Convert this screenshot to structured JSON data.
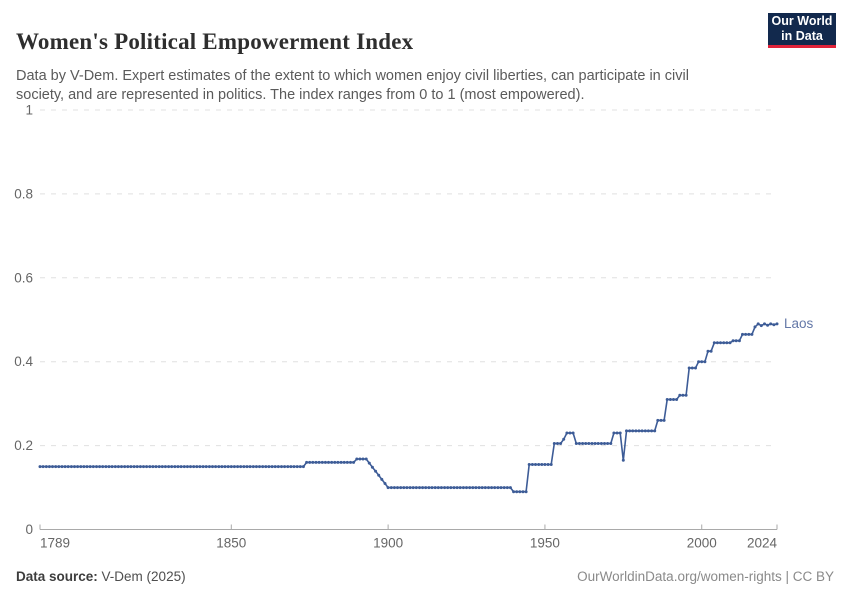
{
  "header": {
    "title": "Women's Political Empowerment Index",
    "subtitle": "Data by V-Dem. Expert estimates of the extent to which women enjoy civil liberties, can participate in civil society, and are represented in politics. The index ranges from 0 to 1 (most empowered).",
    "logo": {
      "line1": "Our World",
      "line2": "in Data",
      "bg_color": "#12294d",
      "accent_color": "#e0233a"
    }
  },
  "chart_data": {
    "type": "line",
    "title": "Women's Political Empowerment Index",
    "xlabel": "",
    "ylabel": "",
    "x_axis": {
      "range": [
        1789,
        2024
      ],
      "ticks": [
        1789,
        1850,
        1900,
        1950,
        2000,
        2024
      ]
    },
    "y_axis": {
      "range": [
        0,
        1
      ],
      "ticks": [
        0,
        0.2,
        0.4,
        0.6,
        0.8,
        1
      ],
      "gridlines": "dashed"
    },
    "legend_position": "end-of-line-label",
    "series": [
      {
        "name": "Laos",
        "interpolation": "linear between breakpoints, marker at every year",
        "breakpoints": [
          [
            1789,
            0.15
          ],
          [
            1873,
            0.15
          ],
          [
            1874,
            0.16
          ],
          [
            1889,
            0.16
          ],
          [
            1890,
            0.168
          ],
          [
            1893,
            0.168
          ],
          [
            1900,
            0.1
          ],
          [
            1939,
            0.1
          ],
          [
            1940,
            0.09
          ],
          [
            1944,
            0.09
          ],
          [
            1945,
            0.155
          ],
          [
            1952,
            0.155
          ],
          [
            1953,
            0.205
          ],
          [
            1955,
            0.205
          ],
          [
            1956,
            0.215
          ],
          [
            1957,
            0.23
          ],
          [
            1959,
            0.23
          ],
          [
            1960,
            0.205
          ],
          [
            1971,
            0.205
          ],
          [
            1972,
            0.23
          ],
          [
            1974,
            0.23
          ],
          [
            1975,
            0.165
          ],
          [
            1976,
            0.235
          ],
          [
            1985,
            0.235
          ],
          [
            1986,
            0.26
          ],
          [
            1988,
            0.26
          ],
          [
            1989,
            0.31
          ],
          [
            1992,
            0.31
          ],
          [
            1993,
            0.32
          ],
          [
            1995,
            0.32
          ],
          [
            1996,
            0.385
          ],
          [
            1998,
            0.385
          ],
          [
            1999,
            0.4
          ],
          [
            2001,
            0.4
          ],
          [
            2002,
            0.425
          ],
          [
            2003,
            0.425
          ],
          [
            2004,
            0.445
          ],
          [
            2009,
            0.445
          ],
          [
            2010,
            0.45
          ],
          [
            2012,
            0.45
          ],
          [
            2013,
            0.465
          ],
          [
            2016,
            0.465
          ],
          [
            2017,
            0.483
          ],
          [
            2018,
            0.49
          ],
          [
            2019,
            0.486
          ],
          [
            2020,
            0.49
          ],
          [
            2021,
            0.487
          ],
          [
            2022,
            0.49
          ],
          [
            2023,
            0.488
          ],
          [
            2024,
            0.49
          ]
        ]
      }
    ],
    "colors": {
      "line": "#3d5c97",
      "entity_label": "#6478a8",
      "grid": "#e0e0e0",
      "axis": "#a9a9a9",
      "tick_text": "#666666"
    }
  },
  "footer": {
    "source_label": "Data source:",
    "source_value": "V-Dem (2025)",
    "credit": "OurWorldinData.org/women-rights | CC BY"
  }
}
